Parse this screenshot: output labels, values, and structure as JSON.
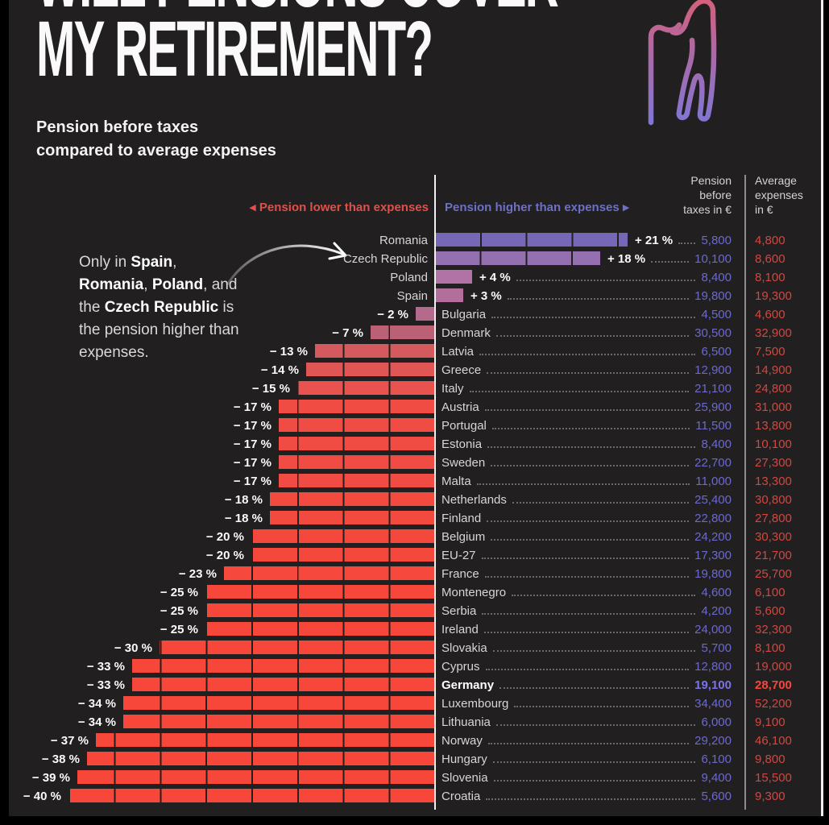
{
  "page": {
    "title_line1": "WILL PENSIONS COVER",
    "title_line2": "MY RETIREMENT?",
    "subtitle": "Pension before taxes\ncompared to average expenses"
  },
  "annotation": {
    "segments": [
      {
        "text": "Only in ",
        "bold": false
      },
      {
        "text": "Spain",
        "bold": true
      },
      {
        "text": ", ",
        "bold": false
      },
      {
        "text": "Romania",
        "bold": true
      },
      {
        "text": ", ",
        "bold": false
      },
      {
        "text": "Poland",
        "bold": true
      },
      {
        "text": ", and the ",
        "bold": false
      },
      {
        "text": "Czech Republic",
        "bold": true
      },
      {
        "text": " is the pension higher than expenses.",
        "bold": false
      }
    ]
  },
  "legend": {
    "lower_label": "Pension lower than expenses",
    "higher_label": "Pension higher than expenses",
    "lower_arrow": "◀",
    "higher_arrow": "▶",
    "lower_color": "#e0504a",
    "higher_color": "#6e6fc8"
  },
  "columns": {
    "pension_header": "Pension\nbefore\ntaxes in €",
    "expenses_header": "Average\nexpenses\nin €"
  },
  "icons": {
    "figure": "elderly-person-with-cane-icon",
    "figure_gradient_top": "#d4607c",
    "figure_gradient_bottom": "#7d77d6",
    "annotation_arrow": "curved-arrow-icon"
  },
  "chart_data": {
    "type": "bar",
    "orientation": "horizontal-diverging",
    "title": "Pension before taxes compared to average expenses",
    "unit": "percent difference between pension and expenses",
    "axis": {
      "zero_at": "center",
      "segment_gridline_interval_pct": 5,
      "xlim": [
        -40,
        21
      ]
    },
    "value_columns": [
      "Pension before taxes in €",
      "Average expenses in €"
    ],
    "pension_value_color": "#6c6aca",
    "expense_value_color": "#d6463e",
    "rows": [
      {
        "country": "Romania",
        "pct": 21,
        "pct_label": "+ 21 %",
        "pension": "5,800",
        "expenses": "4,800",
        "color": "#7668b6",
        "highlight": false
      },
      {
        "country": "Czech Republic",
        "pct": 18,
        "pct_label": "+ 18 %",
        "pension": "10,100",
        "expenses": "8,600",
        "color": "#9470b0",
        "highlight": false
      },
      {
        "country": "Poland",
        "pct": 4,
        "pct_label": "+ 4 %",
        "pension": "8,400",
        "expenses": "8,100",
        "color": "#b172a5",
        "highlight": false
      },
      {
        "country": "Spain",
        "pct": 3,
        "pct_label": "+ 3 %",
        "pension": "19,800",
        "expenses": "19,300",
        "color": "#b36f9c",
        "highlight": false
      },
      {
        "country": "Bulgaria",
        "pct": -2,
        "pct_label": "− 2 %",
        "pension": "4,500",
        "expenses": "4,600",
        "color": "#b36a8d",
        "highlight": false
      },
      {
        "country": "Denmark",
        "pct": -7,
        "pct_label": "− 7 %",
        "pension": "30,500",
        "expenses": "32,900",
        "color": "#bc6175",
        "highlight": false
      },
      {
        "country": "Latvia",
        "pct": -13,
        "pct_label": "− 13 %",
        "pension": "6,500",
        "expenses": "7,500",
        "color": "#d55a5d",
        "highlight": false
      },
      {
        "country": "Greece",
        "pct": -14,
        "pct_label": "− 14 %",
        "pension": "12,900",
        "expenses": "14,900",
        "color": "#df5655",
        "highlight": false
      },
      {
        "country": "Italy",
        "pct": -15,
        "pct_label": "− 15 %",
        "pension": "21,100",
        "expenses": "24,800",
        "color": "#e85350",
        "highlight": false
      },
      {
        "country": "Austria",
        "pct": -17,
        "pct_label": "− 17 %",
        "pension": "25,900",
        "expenses": "31,000",
        "color": "#f04c44",
        "highlight": false
      },
      {
        "country": "Portugal",
        "pct": -17,
        "pct_label": "− 17 %",
        "pension": "11,500",
        "expenses": "13,800",
        "color": "#f04c44",
        "highlight": false
      },
      {
        "country": "Estonia",
        "pct": -17,
        "pct_label": "− 17 %",
        "pension": "8,400",
        "expenses": "10,100",
        "color": "#f04c44",
        "highlight": false
      },
      {
        "country": "Sweden",
        "pct": -17,
        "pct_label": "− 17 %",
        "pension": "22,700",
        "expenses": "27,300",
        "color": "#f04c44",
        "highlight": false
      },
      {
        "country": "Malta",
        "pct": -17,
        "pct_label": "− 17 %",
        "pension": "11,000",
        "expenses": "13,300",
        "color": "#f04c44",
        "highlight": false
      },
      {
        "country": "Netherlands",
        "pct": -18,
        "pct_label": "− 18 %",
        "pension": "25,400",
        "expenses": "30,800",
        "color": "#f34a40",
        "highlight": false
      },
      {
        "country": "Finland",
        "pct": -18,
        "pct_label": "− 18 %",
        "pension": "22,800",
        "expenses": "27,800",
        "color": "#f34a40",
        "highlight": false
      },
      {
        "country": "Belgium",
        "pct": -20,
        "pct_label": "− 20 %",
        "pension": "24,200",
        "expenses": "30,300",
        "color": "#f5483d",
        "highlight": false
      },
      {
        "country": "EU-27",
        "pct": -20,
        "pct_label": "− 20 %",
        "pension": "17,300",
        "expenses": "21,700",
        "color": "#f5483d",
        "highlight": false
      },
      {
        "country": "France",
        "pct": -23,
        "pct_label": "− 23 %",
        "pension": "19,800",
        "expenses": "25,700",
        "color": "#f6483c",
        "highlight": false
      },
      {
        "country": "Montenegro",
        "pct": -25,
        "pct_label": "− 25 %",
        "pension": "4,600",
        "expenses": "6,100",
        "color": "#f7473b",
        "highlight": false
      },
      {
        "country": "Serbia",
        "pct": -25,
        "pct_label": "− 25 %",
        "pension": "4,200",
        "expenses": "5,600",
        "color": "#f7473b",
        "highlight": false
      },
      {
        "country": "Ireland",
        "pct": -25,
        "pct_label": "− 25 %",
        "pension": "24,000",
        "expenses": "32,300",
        "color": "#f7473b",
        "highlight": false
      },
      {
        "country": "Slovakia",
        "pct": -30,
        "pct_label": "− 30 %",
        "pension": "5,700",
        "expenses": "8,100",
        "color": "#f7473b",
        "highlight": false
      },
      {
        "country": "Cyprus",
        "pct": -33,
        "pct_label": "− 33 %",
        "pension": "12,800",
        "expenses": "19,000",
        "color": "#f7473b",
        "highlight": false
      },
      {
        "country": "Germany",
        "pct": -33,
        "pct_label": "− 33 %",
        "pension": "19,100",
        "expenses": "28,700",
        "color": "#f7473b",
        "highlight": true
      },
      {
        "country": "Luxembourg",
        "pct": -34,
        "pct_label": "− 34 %",
        "pension": "34,400",
        "expenses": "52,200",
        "color": "#f7473b",
        "highlight": false
      },
      {
        "country": "Lithuania",
        "pct": -34,
        "pct_label": "− 34 %",
        "pension": "6,000",
        "expenses": "9,100",
        "color": "#f7473b",
        "highlight": false
      },
      {
        "country": "Norway",
        "pct": -37,
        "pct_label": "− 37 %",
        "pension": "29,200",
        "expenses": "46,100",
        "color": "#f7473b",
        "highlight": false
      },
      {
        "country": "Hungary",
        "pct": -38,
        "pct_label": "− 38 %",
        "pension": "6,100",
        "expenses": "9,800",
        "color": "#f7473b",
        "highlight": false
      },
      {
        "country": "Slovenia",
        "pct": -39,
        "pct_label": "− 39 %",
        "pension": "9,400",
        "expenses": "15,500",
        "color": "#f7473b",
        "highlight": false
      },
      {
        "country": "Croatia",
        "pct": -40,
        "pct_label": "− 40 %",
        "pension": "5,600",
        "expenses": "9,300",
        "color": "#f7473b",
        "highlight": false
      }
    ]
  }
}
